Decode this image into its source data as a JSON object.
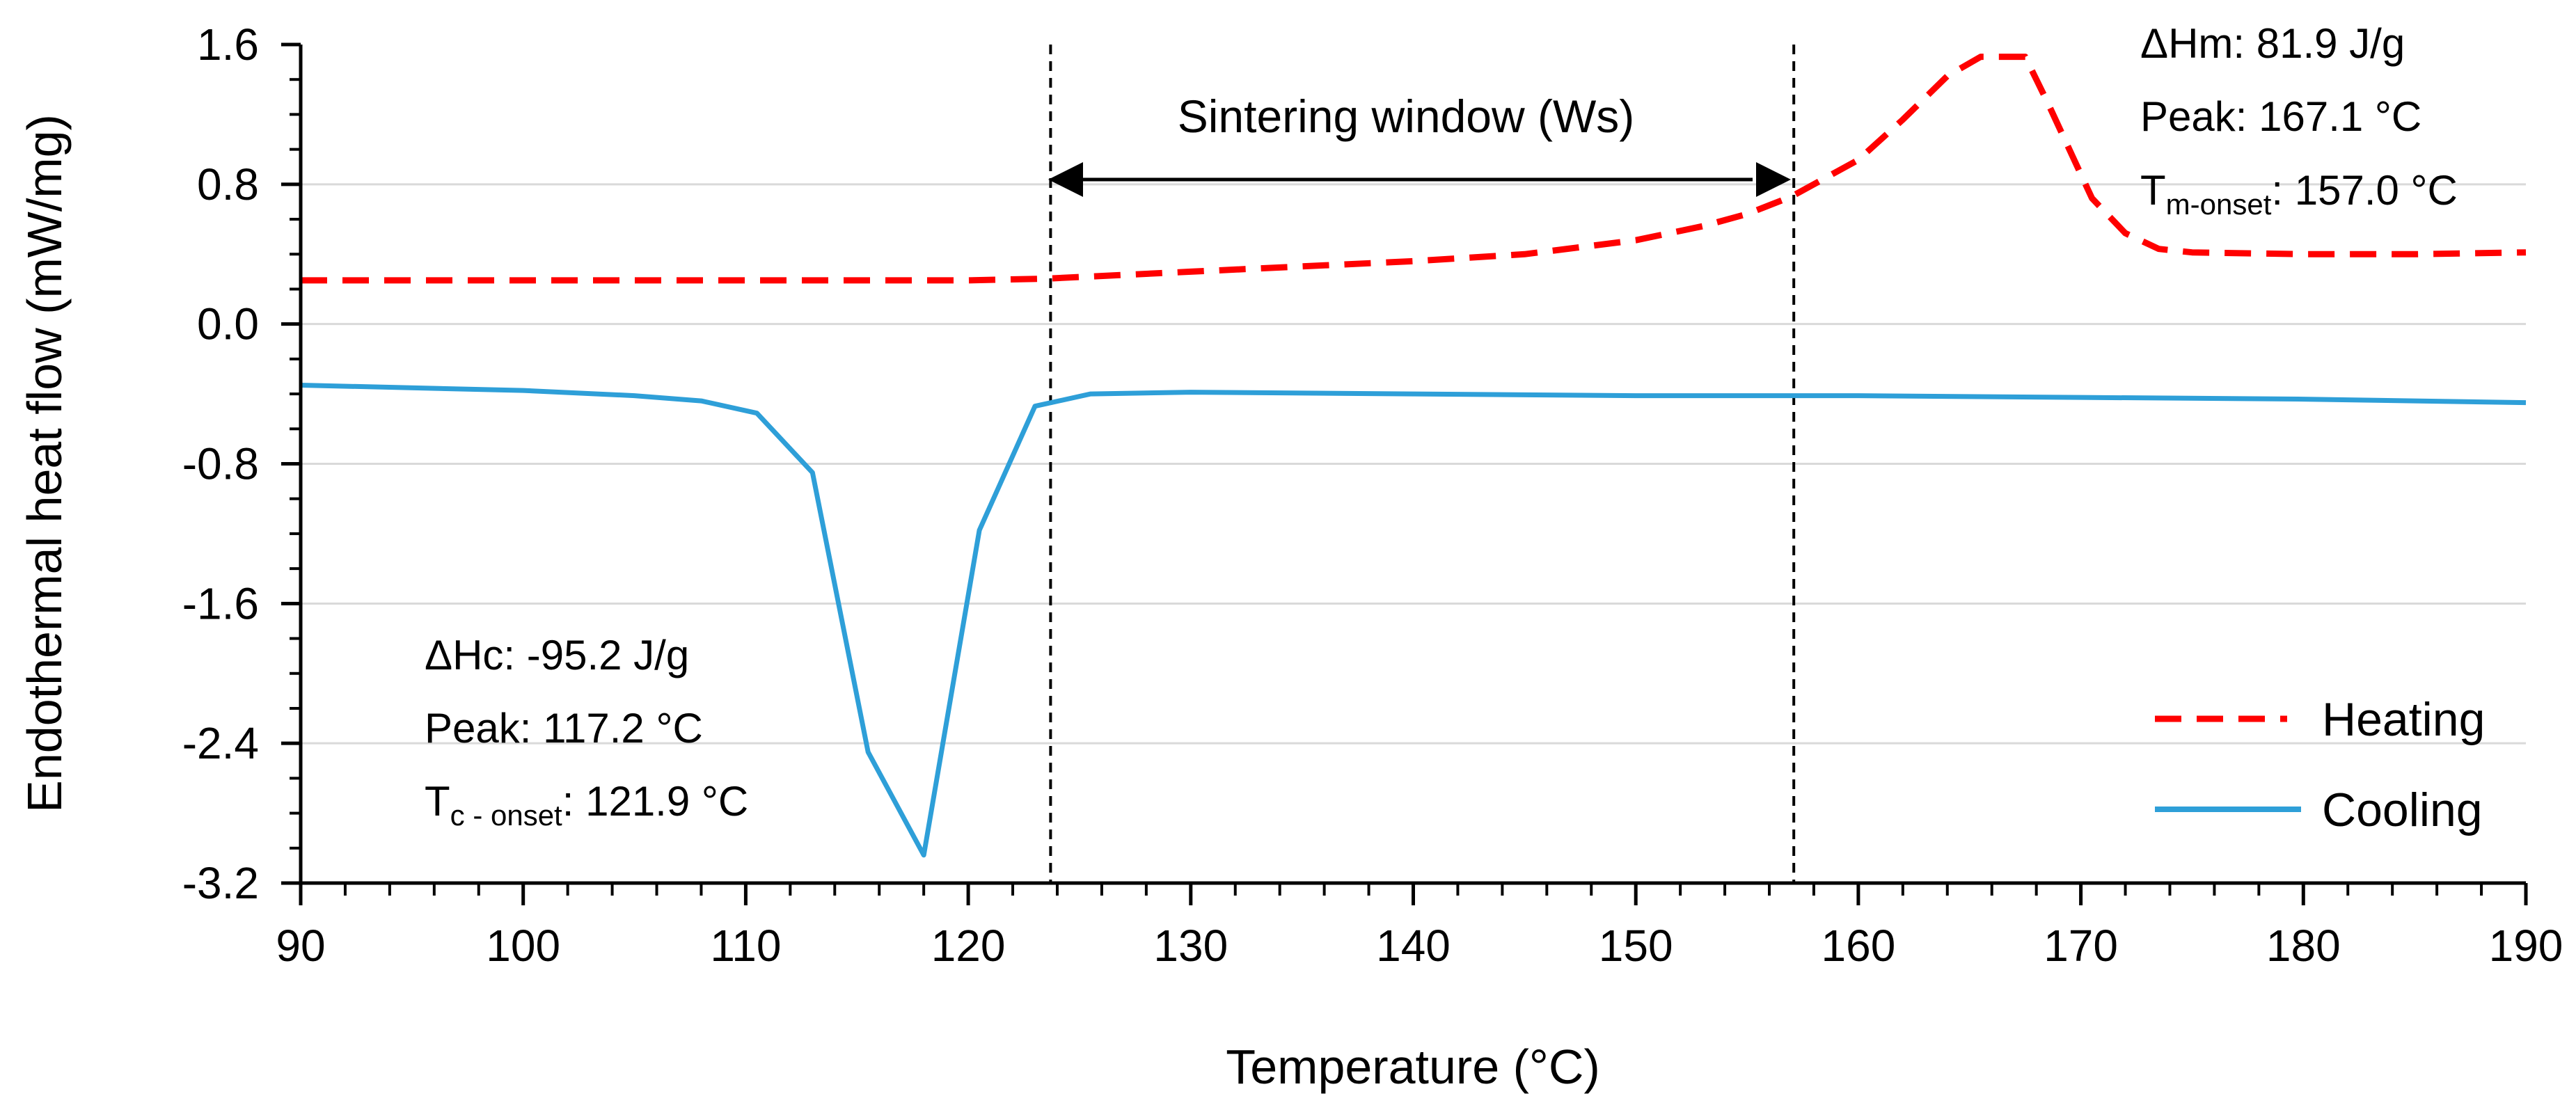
{
  "chart_data": {
    "type": "line",
    "title": "",
    "xlabel": "Temperature (°C)",
    "ylabel": "Endothermal heat flow (mW/mg)",
    "xlim": [
      90,
      190
    ],
    "ylim": [
      -3.2,
      1.6
    ],
    "xticks": [
      90,
      100,
      110,
      120,
      130,
      140,
      150,
      160,
      170,
      180,
      190
    ],
    "yticks": [
      1.6,
      0.8,
      0.0,
      -0.8,
      -1.6,
      -2.4,
      -3.2
    ],
    "ytick_labels": [
      "1.6",
      "0.8",
      "0.0",
      "-0.8",
      "-1.6",
      "-2.4",
      "-3.2"
    ],
    "xtick_labels": [
      "90",
      "100",
      "110",
      "120",
      "130",
      "140",
      "150",
      "160",
      "170",
      "180",
      "190"
    ],
    "grid": "horizontal",
    "legend_position": "bottom-right",
    "series": [
      {
        "name": "Heating",
        "color": "#ff0000",
        "style": "dashed",
        "x": [
          90,
          100,
          110,
          120,
          123.5,
          130,
          140,
          145,
          150,
          153,
          155,
          157,
          160,
          162,
          164,
          165.5,
          167.5,
          168.5,
          170.5,
          172,
          173.5,
          175,
          180,
          185,
          190
        ],
        "y": [
          0.25,
          0.25,
          0.25,
          0.25,
          0.26,
          0.3,
          0.36,
          0.4,
          0.48,
          0.56,
          0.63,
          0.73,
          0.94,
          1.17,
          1.42,
          1.53,
          1.53,
          1.27,
          0.72,
          0.52,
          0.43,
          0.41,
          0.4,
          0.4,
          0.41
        ]
      },
      {
        "name": "Cooling",
        "color": "#2e9fd8",
        "style": "solid",
        "x": [
          90,
          100,
          105,
          108,
          110.5,
          113,
          115.5,
          118,
          120.5,
          123,
          125.5,
          130,
          140,
          150,
          160,
          170,
          180,
          190
        ],
        "y": [
          -0.35,
          -0.38,
          -0.41,
          -0.44,
          -0.51,
          -0.85,
          -2.45,
          -3.04,
          -1.18,
          -0.47,
          -0.4,
          -0.39,
          -0.4,
          -0.41,
          -0.41,
          -0.42,
          -0.43,
          -0.45
        ]
      }
    ],
    "vertical_lines": [
      123.7,
      157.1
    ],
    "annotations": {
      "sintering": "Sintering window (Ws)",
      "heating": {
        "dh": "ΔHm: 81.9 J/g",
        "peak": "Peak: 167.1 °C",
        "onset_main": "T",
        "onset_sub": "m-onset",
        "onset_value": ": 157.0 °C"
      },
      "cooling": {
        "dh": "ΔHc: -95.2 J/g",
        "peak": "Peak: 117.2 °C",
        "onset_main": "T",
        "onset_sub": "c - onset",
        "onset_value": ": 121.9 °C"
      }
    }
  }
}
